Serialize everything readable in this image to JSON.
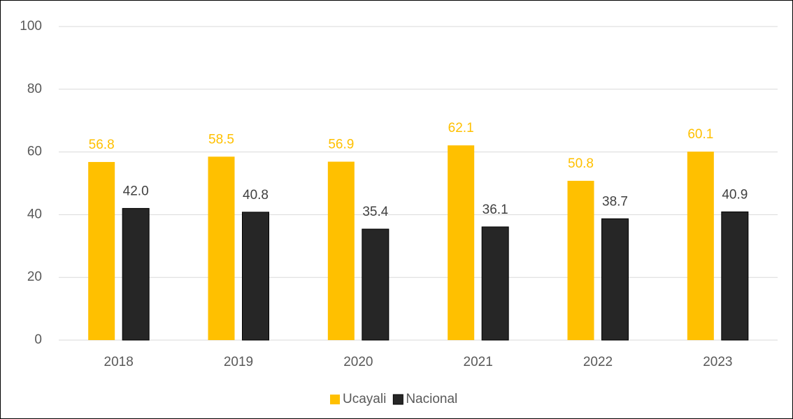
{
  "chart_data": {
    "type": "bar",
    "categories": [
      "2018",
      "2019",
      "2020",
      "2021",
      "2022",
      "2023"
    ],
    "series": [
      {
        "name": "Ucayali",
        "color": "#ffc000",
        "values": [
          56.8,
          58.5,
          56.9,
          62.1,
          50.8,
          60.1
        ],
        "value_labels": [
          "56.8",
          "58.5",
          "56.9",
          "62.1",
          "50.8",
          "60.1"
        ]
      },
      {
        "name": "Nacional",
        "color": "#262626",
        "values": [
          42,
          40.8,
          35.4,
          36.1,
          38.7,
          40.9
        ],
        "value_labels": [
          "42.0",
          "40.8",
          "35.4",
          "36.1",
          "38.7",
          "40.9"
        ]
      }
    ],
    "ylim": [
      0,
      100
    ],
    "yticks": [
      0,
      20,
      40,
      60,
      80,
      100
    ],
    "grid": true,
    "legend": "bottom"
  }
}
